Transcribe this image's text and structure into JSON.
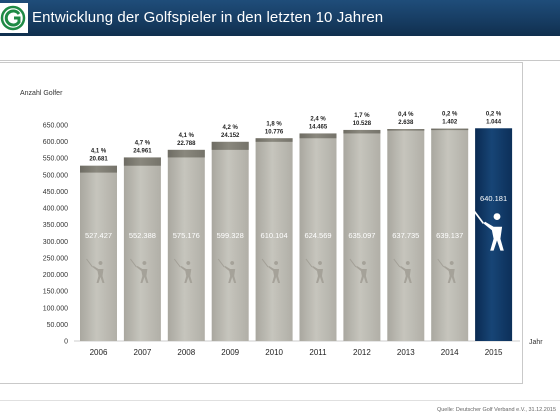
{
  "header": {
    "title": "Entwicklung der Golfspieler in den letzten 10 Jahren"
  },
  "footer": {
    "source": "Quelle: Deutscher Golf Verband e.V., 31.12.2015"
  },
  "colors": {
    "header": "#173d63",
    "bar": "#bdbcb4",
    "bar_dark": "#7d7b72",
    "highlight": "#0e3563"
  },
  "chart_data": {
    "type": "bar",
    "ylabel": "Anzahl Golfer",
    "xlabel": "Jahr",
    "ylim": [
      0,
      650000
    ],
    "yticks": [
      "650.000",
      "600.000",
      "550.000",
      "500.000",
      "450.000",
      "400.000",
      "350.000",
      "300.000",
      "250.000",
      "200.000",
      "150.000",
      "100.000",
      "50.000",
      "0"
    ],
    "categories": [
      "2006",
      "2007",
      "2008",
      "2009",
      "2010",
      "2011",
      "2012",
      "2013",
      "2014",
      "2015"
    ],
    "values": [
      527427,
      552388,
      575176,
      599328,
      610104,
      624569,
      635097,
      637735,
      639137,
      640181
    ],
    "value_labels": [
      "527.427",
      "552.388",
      "575.176",
      "599.328",
      "610.104",
      "624.569",
      "635.097",
      "637.735",
      "639.137",
      "640.181"
    ],
    "growth_percent": [
      "4,1 %",
      "4,7 %",
      "4,1 %",
      "4,2 %",
      "1,8 %",
      "2,4 %",
      "1,7 %",
      "0,4 %",
      "0,2 %",
      "0,2 %"
    ],
    "growth_abs": [
      "20.681",
      "24.961",
      "22.788",
      "24.152",
      "10.776",
      "14.465",
      "10.528",
      "2.638",
      "1.402",
      "1.044"
    ],
    "growth_values": [
      20681,
      24961,
      22788,
      24152,
      10776,
      14465,
      10528,
      2638,
      1402,
      1044
    ],
    "highlight_index": 9,
    "grid": false
  }
}
